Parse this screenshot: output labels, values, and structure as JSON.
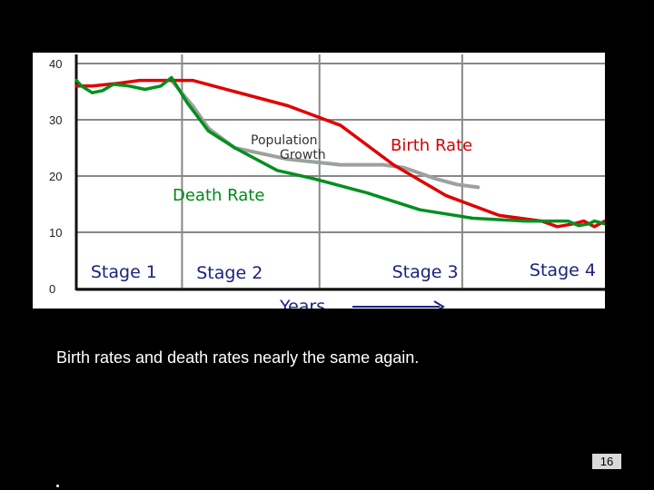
{
  "caption": "Birth rates and death rates nearly the same again.",
  "page_number": "16",
  "chart_data": {
    "type": "line",
    "y_ticks": [
      "0",
      "10",
      "20",
      "30",
      "40"
    ],
    "ylim": [
      0,
      40
    ],
    "x_range": [
      0,
      100
    ],
    "xlabel": "Years",
    "stages": [
      {
        "label": "Stage 1",
        "x": 9
      },
      {
        "label": "Stage 2",
        "x": 29
      },
      {
        "label": "Stage 3",
        "x": 66
      },
      {
        "label": "Stage 4",
        "x": 92
      }
    ],
    "series": [
      {
        "name": "Birth Rate",
        "color": "#e00000",
        "x": [
          0,
          3,
          8,
          12,
          16,
          18,
          22,
          30,
          40,
          50,
          60,
          70,
          80,
          88,
          91,
          94,
          96,
          98,
          100
        ],
        "values": [
          36,
          36,
          36.5,
          37,
          37,
          37,
          37,
          35,
          32.5,
          29,
          22,
          16.5,
          13,
          12,
          11,
          11.5,
          12,
          11,
          12
        ]
      },
      {
        "name": "Death Rate",
        "color": "#008f1f",
        "x": [
          0,
          1,
          3,
          5,
          7,
          10,
          13,
          16,
          18,
          21,
          25,
          30,
          38,
          45,
          55,
          65,
          75,
          85,
          90,
          93,
          95,
          97,
          98,
          100
        ],
        "values": [
          37,
          36,
          34.8,
          35.2,
          36.3,
          36,
          35.4,
          36,
          37.5,
          33,
          28,
          25,
          21,
          19.5,
          17,
          14,
          12.5,
          12,
          12,
          12,
          11.2,
          11.5,
          12,
          11.5
        ]
      },
      {
        "name": "Population Growth",
        "color": "#9aa39b",
        "x": [
          18,
          22,
          25,
          30,
          35,
          40,
          50,
          58,
          62,
          68,
          72,
          76
        ],
        "values": [
          37,
          32.5,
          28.5,
          25,
          24,
          23,
          22,
          22,
          21.5,
          19.5,
          18.5,
          18
        ]
      }
    ],
    "annotations": [
      {
        "text": "Population",
        "x": 42,
        "y": 25.3
      },
      {
        "text": "Growth",
        "x": 42,
        "y": 23.3
      }
    ],
    "grid": true
  }
}
